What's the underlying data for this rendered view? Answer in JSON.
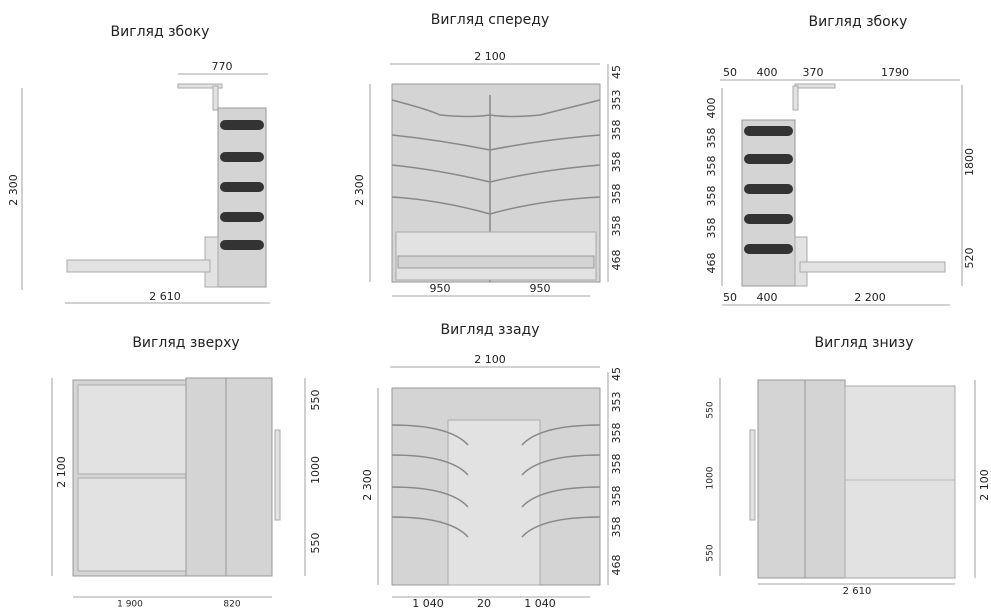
{
  "views": [
    {
      "title": "Вигляд збоку",
      "dims": [
        "770",
        "2 300",
        "2 610"
      ]
    },
    {
      "title": "Вигляд спереду",
      "dims": [
        "2 100",
        "2 300",
        "45",
        "353",
        "358",
        "358",
        "358",
        "358",
        "468",
        "950",
        "950"
      ]
    },
    {
      "title": "Вигляд збоку",
      "dims": [
        "50",
        "400",
        "370",
        "1790",
        "400",
        "358",
        "358",
        "358",
        "358",
        "468",
        "1800",
        "520",
        "50",
        "400",
        "2 200"
      ]
    },
    {
      "title": "Вигляд зверху",
      "dims": [
        "2 100",
        "550",
        "1000",
        "550",
        "1 900",
        "820"
      ]
    },
    {
      "title": "Вигляд ззаду",
      "dims": [
        "2 100",
        "2 300",
        "45",
        "353",
        "358",
        "358",
        "358",
        "358",
        "468",
        "1 040",
        "20",
        "1 040"
      ]
    },
    {
      "title": "Вигляд знизу",
      "dims": [
        "550",
        "1000",
        "550",
        "2 610",
        "2 100"
      ]
    }
  ]
}
